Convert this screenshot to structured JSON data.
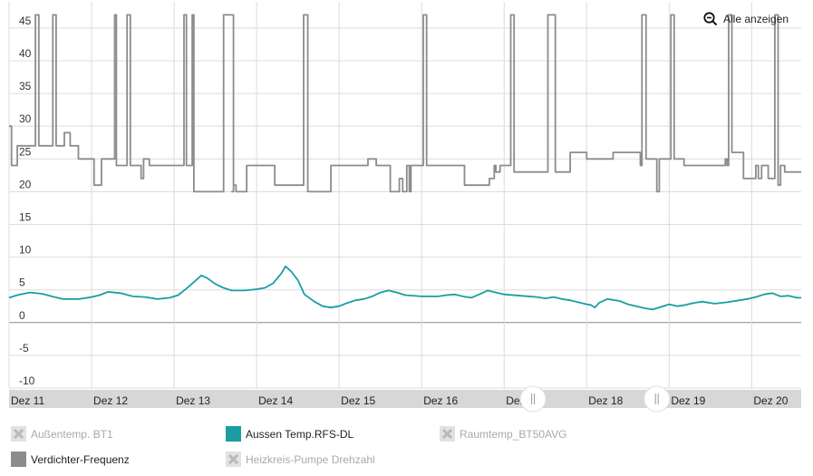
{
  "zoom": {
    "label": "Alle anzeigen",
    "icon": "zoom-out-icon"
  },
  "chart_data": {
    "type": "line",
    "y_ticks": [
      45,
      40,
      35,
      30,
      25,
      20,
      15,
      10,
      5,
      0,
      -5,
      -10
    ],
    "ylim": [
      -10,
      49
    ],
    "x_ticks": [
      "Dez 11",
      "Dez 12",
      "Dez 13",
      "Dez 14",
      "Dez 15",
      "Dez 16",
      "Dez 17",
      "Dez 18",
      "Dez 19",
      "Dez 20"
    ],
    "xlim": [
      0,
      9.6
    ],
    "grid": true,
    "series": [
      {
        "name": "Verdichter-Frequenz",
        "color": "#8c8c8c",
        "step": true,
        "points": [
          [
            0,
            30
          ],
          [
            0.03,
            24
          ],
          [
            0.1,
            27
          ],
          [
            0.3,
            27
          ],
          [
            0.32,
            47
          ],
          [
            0.36,
            27
          ],
          [
            0.5,
            27
          ],
          [
            0.53,
            47
          ],
          [
            0.57,
            27
          ],
          [
            0.66,
            27
          ],
          [
            0.67,
            29
          ],
          [
            0.73,
            29
          ],
          [
            0.74,
            27
          ],
          [
            0.83,
            27
          ],
          [
            0.84,
            25
          ],
          [
            0.9,
            25
          ],
          [
            1.02,
            25
          ],
          [
            1.03,
            21
          ],
          [
            1.12,
            25
          ],
          [
            1.2,
            25
          ],
          [
            1.26,
            25
          ],
          [
            1.28,
            47
          ],
          [
            1.3,
            24
          ],
          [
            1.4,
            24
          ],
          [
            1.43,
            47
          ],
          [
            1.47,
            24
          ],
          [
            1.58,
            24
          ],
          [
            1.6,
            22
          ],
          [
            1.63,
            25
          ],
          [
            1.7,
            24
          ],
          [
            1.9,
            24
          ],
          [
            2.0,
            24
          ],
          [
            2.1,
            24
          ],
          [
            2.12,
            47
          ],
          [
            2.15,
            24
          ],
          [
            2.2,
            24
          ],
          [
            2.22,
            47
          ],
          [
            2.24,
            20
          ],
          [
            2.4,
            20
          ],
          [
            2.5,
            20
          ],
          [
            2.58,
            20
          ],
          [
            2.6,
            47
          ],
          [
            2.7,
            47
          ],
          [
            2.72,
            20
          ],
          [
            2.7,
            20
          ],
          [
            2.72,
            21
          ],
          [
            2.75,
            20
          ],
          [
            2.85,
            20
          ],
          [
            2.88,
            24
          ],
          [
            3.1,
            24
          ],
          [
            3.2,
            24
          ],
          [
            3.22,
            21
          ],
          [
            3.4,
            21
          ],
          [
            3.55,
            21
          ],
          [
            3.57,
            47
          ],
          [
            3.62,
            20
          ],
          [
            3.7,
            20
          ],
          [
            3.8,
            20
          ],
          [
            3.82,
            20
          ],
          [
            3.85,
            20
          ],
          [
            3.9,
            24
          ],
          [
            4.15,
            24
          ],
          [
            4.3,
            24
          ],
          [
            4.35,
            25
          ],
          [
            4.4,
            25
          ],
          [
            4.45,
            24
          ],
          [
            4.5,
            24
          ],
          [
            4.6,
            24
          ],
          [
            4.62,
            20
          ],
          [
            4.7,
            20
          ],
          [
            4.73,
            22
          ],
          [
            4.77,
            20
          ],
          [
            4.82,
            24
          ],
          [
            4.85,
            20
          ],
          [
            4.87,
            24
          ],
          [
            4.95,
            24
          ],
          [
            5.0,
            24
          ],
          [
            5.02,
            47
          ],
          [
            5.06,
            24
          ],
          [
            5.2,
            24
          ],
          [
            5.4,
            24
          ],
          [
            5.5,
            24
          ],
          [
            5.52,
            21
          ],
          [
            5.7,
            21
          ],
          [
            5.75,
            21
          ],
          [
            5.8,
            21
          ],
          [
            5.82,
            22
          ],
          [
            5.88,
            24
          ],
          [
            5.9,
            23
          ],
          [
            5.95,
            24
          ],
          [
            6.05,
            24
          ],
          [
            6.08,
            47
          ],
          [
            6.12,
            23
          ],
          [
            6.2,
            23
          ],
          [
            6.3,
            23
          ],
          [
            6.5,
            23
          ],
          [
            6.52,
            23
          ],
          [
            6.53,
            47
          ],
          [
            6.6,
            47
          ],
          [
            6.62,
            23
          ],
          [
            6.72,
            23
          ],
          [
            6.8,
            26
          ],
          [
            6.9,
            26
          ],
          [
            7.0,
            25
          ],
          [
            7.3,
            25
          ],
          [
            7.32,
            26
          ],
          [
            7.5,
            26
          ],
          [
            7.55,
            26
          ],
          [
            7.62,
            26
          ],
          [
            7.65,
            24
          ],
          [
            7.67,
            47
          ],
          [
            7.72,
            25
          ],
          [
            7.78,
            25
          ],
          [
            7.85,
            20
          ],
          [
            7.88,
            25
          ],
          [
            7.95,
            25
          ],
          [
            8.0,
            25
          ],
          [
            8.02,
            47
          ],
          [
            8.06,
            25
          ],
          [
            8.15,
            25
          ],
          [
            8.18,
            24
          ],
          [
            8.3,
            24
          ],
          [
            8.35,
            24
          ],
          [
            8.4,
            24
          ],
          [
            8.45,
            24
          ],
          [
            8.5,
            24
          ],
          [
            8.6,
            24
          ],
          [
            8.65,
            24
          ],
          [
            8.68,
            25
          ],
          [
            8.7,
            24
          ],
          [
            8.72,
            47
          ],
          [
            8.76,
            26
          ],
          [
            8.82,
            26
          ],
          [
            8.85,
            26
          ],
          [
            8.9,
            22
          ],
          [
            9.0,
            22
          ],
          [
            9.05,
            24
          ],
          [
            9.08,
            22
          ],
          [
            9.12,
            24
          ],
          [
            9.18,
            24
          ],
          [
            9.2,
            22
          ],
          [
            9.26,
            22
          ],
          [
            9.28,
            47
          ],
          [
            9.32,
            21
          ],
          [
            9.35,
            24
          ],
          [
            9.4,
            23
          ],
          [
            9.46,
            23
          ],
          [
            9.48,
            23
          ],
          [
            9.5,
            23
          ],
          [
            9.55,
            23
          ],
          [
            9.6,
            23
          ]
        ]
      },
      {
        "name": "Aussen Temp.RFS-DL",
        "color": "#1a9ea1",
        "points": [
          [
            0,
            3.8
          ],
          [
            0.1,
            4.2
          ],
          [
            0.25,
            4.6
          ],
          [
            0.4,
            4.4
          ],
          [
            0.55,
            3.9
          ],
          [
            0.65,
            3.6
          ],
          [
            0.85,
            3.6
          ],
          [
            1.0,
            3.9
          ],
          [
            1.1,
            4.2
          ],
          [
            1.2,
            4.7
          ],
          [
            1.35,
            4.5
          ],
          [
            1.5,
            4.0
          ],
          [
            1.65,
            3.9
          ],
          [
            1.8,
            3.6
          ],
          [
            1.95,
            3.8
          ],
          [
            2.05,
            4.2
          ],
          [
            2.15,
            5.2
          ],
          [
            2.25,
            6.3
          ],
          [
            2.33,
            7.2
          ],
          [
            2.4,
            6.8
          ],
          [
            2.5,
            5.9
          ],
          [
            2.6,
            5.3
          ],
          [
            2.7,
            4.9
          ],
          [
            2.85,
            4.9
          ],
          [
            3.0,
            5.1
          ],
          [
            3.1,
            5.3
          ],
          [
            3.2,
            6.0
          ],
          [
            3.3,
            7.5
          ],
          [
            3.35,
            8.6
          ],
          [
            3.42,
            7.8
          ],
          [
            3.5,
            6.5
          ],
          [
            3.58,
            4.3
          ],
          [
            3.7,
            3.2
          ],
          [
            3.8,
            2.5
          ],
          [
            3.9,
            2.3
          ],
          [
            4.0,
            2.5
          ],
          [
            4.1,
            3.0
          ],
          [
            4.2,
            3.4
          ],
          [
            4.3,
            3.6
          ],
          [
            4.4,
            4.0
          ],
          [
            4.5,
            4.6
          ],
          [
            4.6,
            4.9
          ],
          [
            4.7,
            4.6
          ],
          [
            4.8,
            4.2
          ],
          [
            5.0,
            4.0
          ],
          [
            5.2,
            4.0
          ],
          [
            5.3,
            4.2
          ],
          [
            5.4,
            4.3
          ],
          [
            5.5,
            4.0
          ],
          [
            5.6,
            3.8
          ],
          [
            5.7,
            4.3
          ],
          [
            5.8,
            4.9
          ],
          [
            5.9,
            4.6
          ],
          [
            6.0,
            4.3
          ],
          [
            6.2,
            4.1
          ],
          [
            6.4,
            3.9
          ],
          [
            6.5,
            3.7
          ],
          [
            6.6,
            3.9
          ],
          [
            6.7,
            3.6
          ],
          [
            6.8,
            3.4
          ],
          [
            6.9,
            3.1
          ],
          [
            7.0,
            2.8
          ],
          [
            7.05,
            2.7
          ],
          [
            7.1,
            2.3
          ],
          [
            7.15,
            3.0
          ],
          [
            7.25,
            3.6
          ],
          [
            7.4,
            3.3
          ],
          [
            7.5,
            2.8
          ],
          [
            7.6,
            2.5
          ],
          [
            7.7,
            2.2
          ],
          [
            7.8,
            2.0
          ],
          [
            7.9,
            2.4
          ],
          [
            8.0,
            2.8
          ],
          [
            8.1,
            2.5
          ],
          [
            8.2,
            2.7
          ],
          [
            8.3,
            3.0
          ],
          [
            8.4,
            3.2
          ],
          [
            8.55,
            2.9
          ],
          [
            8.7,
            3.1
          ],
          [
            8.85,
            3.4
          ],
          [
            8.95,
            3.6
          ],
          [
            9.05,
            3.9
          ],
          [
            9.15,
            4.3
          ],
          [
            9.25,
            4.5
          ],
          [
            9.35,
            4.0
          ],
          [
            9.45,
            4.1
          ],
          [
            9.55,
            3.8
          ],
          [
            9.6,
            3.8
          ]
        ]
      }
    ]
  },
  "navigator": {
    "handle_left": 6.35,
    "handle_right": 7.85
  },
  "legend": [
    {
      "name": "Außentemp. BT1",
      "color": "#d9d9d9",
      "visible": false
    },
    {
      "name": "Aussen Temp.RFS-DL",
      "color": "#1a9ea1",
      "visible": true
    },
    {
      "name": "Raumtemp_BT50AVG",
      "color": "#d9d9d9",
      "visible": false
    },
    {
      "name": "Verdichter-Frequenz",
      "color": "#8c8c8c",
      "visible": true
    },
    {
      "name": "Heizkreis-Pumpe Drehzahl",
      "color": "#d9d9d9",
      "visible": false
    }
  ]
}
